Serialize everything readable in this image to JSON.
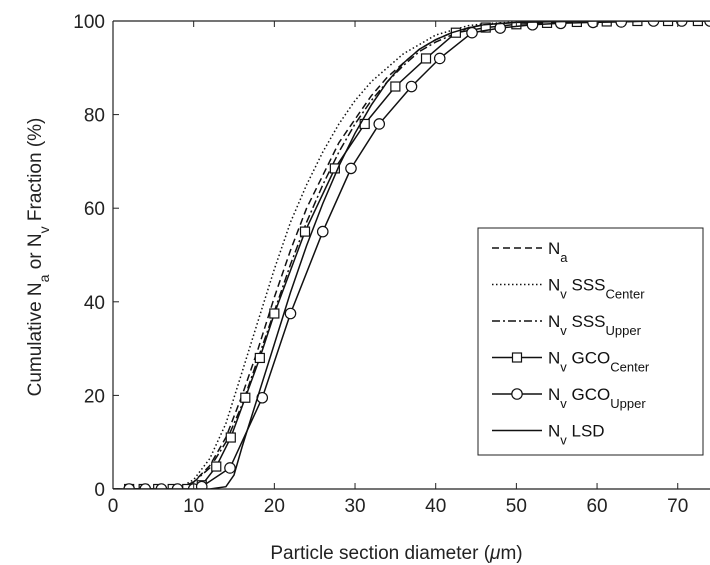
{
  "chart_data": {
    "type": "line",
    "title": "",
    "xlabel_parts": [
      {
        "t": "Particle section diameter ("
      },
      {
        "t": "μ",
        "italic": true
      },
      {
        "t": "m)"
      }
    ],
    "ylabel_parts": [
      {
        "t": "Cumulative N"
      },
      {
        "t": "a",
        "sub": true
      },
      {
        "t": " or N"
      },
      {
        "t": "v",
        "sub": true
      },
      {
        "t": " Fraction (%)"
      }
    ],
    "xlim": [
      0,
      74
    ],
    "ylim": [
      0,
      100
    ],
    "xticks": [
      "0",
      "10",
      "20",
      "30",
      "40",
      "50",
      "60",
      "70"
    ],
    "yticks": [
      "0",
      "20",
      "40",
      "60",
      "80",
      "100"
    ],
    "grid": false,
    "legend_position": "right",
    "colors": {
      "line": "#111111",
      "axis": "#222222"
    },
    "series": [
      {
        "label_parts": [
          {
            "t": "N"
          },
          {
            "t": "a",
            "sub": true
          }
        ],
        "dash": "dashed",
        "marker": "none",
        "x": [
          0,
          8,
          10,
          12,
          14,
          16,
          18,
          20,
          22,
          24,
          26,
          28,
          30,
          32,
          34,
          36,
          38,
          40,
          42,
          44,
          46,
          50,
          60,
          74
        ],
        "y": [
          0,
          0,
          1.5,
          5,
          11,
          20,
          30,
          41,
          51,
          60,
          67,
          74,
          79,
          84,
          88,
          91,
          94,
          96,
          97.5,
          98.5,
          99.2,
          99.7,
          100,
          100
        ]
      },
      {
        "label_parts": [
          {
            "t": "N"
          },
          {
            "t": "v",
            "sub": true
          },
          {
            "t": " SSS"
          },
          {
            "t": "Center",
            "sub": true
          }
        ],
        "dash": "dotted",
        "marker": "none",
        "x": [
          0,
          8,
          10,
          12,
          14,
          16,
          18,
          20,
          22,
          24,
          26,
          28,
          30,
          32,
          34,
          36,
          38,
          40,
          42,
          44,
          46,
          50,
          60,
          74
        ],
        "y": [
          0,
          0,
          2,
          6.5,
          14,
          25,
          36,
          47,
          57,
          65,
          72,
          78,
          83,
          87,
          90,
          93,
          95,
          97,
          98,
          99,
          99.4,
          99.8,
          100,
          100
        ]
      },
      {
        "label_parts": [
          {
            "t": "N"
          },
          {
            "t": "v",
            "sub": true
          },
          {
            "t": " SSS"
          },
          {
            "t": "Upper",
            "sub": true
          }
        ],
        "dash": "dashdot",
        "marker": "none",
        "x": [
          0,
          8,
          10,
          12,
          14,
          16,
          18,
          20,
          22,
          24,
          26,
          28,
          30,
          32,
          34,
          36,
          38,
          40,
          42,
          44,
          46,
          50,
          60,
          74
        ],
        "y": [
          0,
          0,
          1.5,
          4.5,
          10,
          18,
          28,
          38,
          48,
          57,
          65,
          72,
          78,
          83,
          87,
          90.5,
          93.5,
          95.5,
          97,
          98.5,
          99.2,
          99.7,
          100,
          100
        ]
      },
      {
        "label_parts": [
          {
            "t": "N"
          },
          {
            "t": "v",
            "sub": true
          },
          {
            "t": " GCO"
          },
          {
            "t": "Center",
            "sub": true
          }
        ],
        "dash": "solid",
        "marker": "square",
        "x": [
          2,
          3.8,
          5.6,
          7.4,
          9.2,
          11,
          12.8,
          14.6,
          16.4,
          18.2,
          20,
          23.8,
          27.5,
          31.2,
          35,
          38.8,
          42.5,
          46.2,
          50,
          53.8,
          57.5,
          61.2,
          65,
          68.8,
          72.5
        ],
        "y": [
          0,
          0,
          0,
          0,
          0,
          0.8,
          4.8,
          11,
          19.5,
          28,
          37.5,
          55,
          68.5,
          78,
          86,
          92,
          97.5,
          98.6,
          99.3,
          99.6,
          99.8,
          99.9,
          100,
          100,
          100
        ]
      },
      {
        "label_parts": [
          {
            "t": "N"
          },
          {
            "t": "v",
            "sub": true
          },
          {
            "t": " GCO"
          },
          {
            "t": "Upper",
            "sub": true
          }
        ],
        "dash": "solid",
        "marker": "circle",
        "x": [
          2,
          4,
          6,
          8,
          10,
          11,
          14.5,
          18.5,
          22,
          26,
          29.5,
          33,
          37,
          40.5,
          44.5,
          48,
          52,
          55.5,
          59.5,
          63,
          67,
          70.5,
          74
        ],
        "y": [
          0,
          0,
          0,
          0,
          0,
          0.5,
          4.5,
          19.5,
          37.5,
          55,
          68.5,
          78,
          86,
          92,
          97.5,
          98.5,
          99.2,
          99.5,
          99.7,
          99.8,
          100,
          100,
          100
        ]
      },
      {
        "label_parts": [
          {
            "t": "N"
          },
          {
            "t": "v",
            "sub": true
          },
          {
            "t": " LSD"
          }
        ],
        "dash": "solid",
        "marker": "none",
        "x": [
          0,
          12,
          14,
          15,
          16,
          18,
          20,
          22,
          24,
          26,
          28,
          30,
          32,
          34,
          36,
          38,
          40,
          42,
          44,
          46,
          50,
          60,
          74
        ],
        "y": [
          0,
          0,
          0.5,
          3,
          9,
          20,
          31,
          42,
          52,
          61,
          69,
          76,
          82,
          87,
          91,
          94,
          96,
          97.5,
          98.5,
          99.2,
          99.7,
          100,
          100
        ]
      }
    ]
  }
}
